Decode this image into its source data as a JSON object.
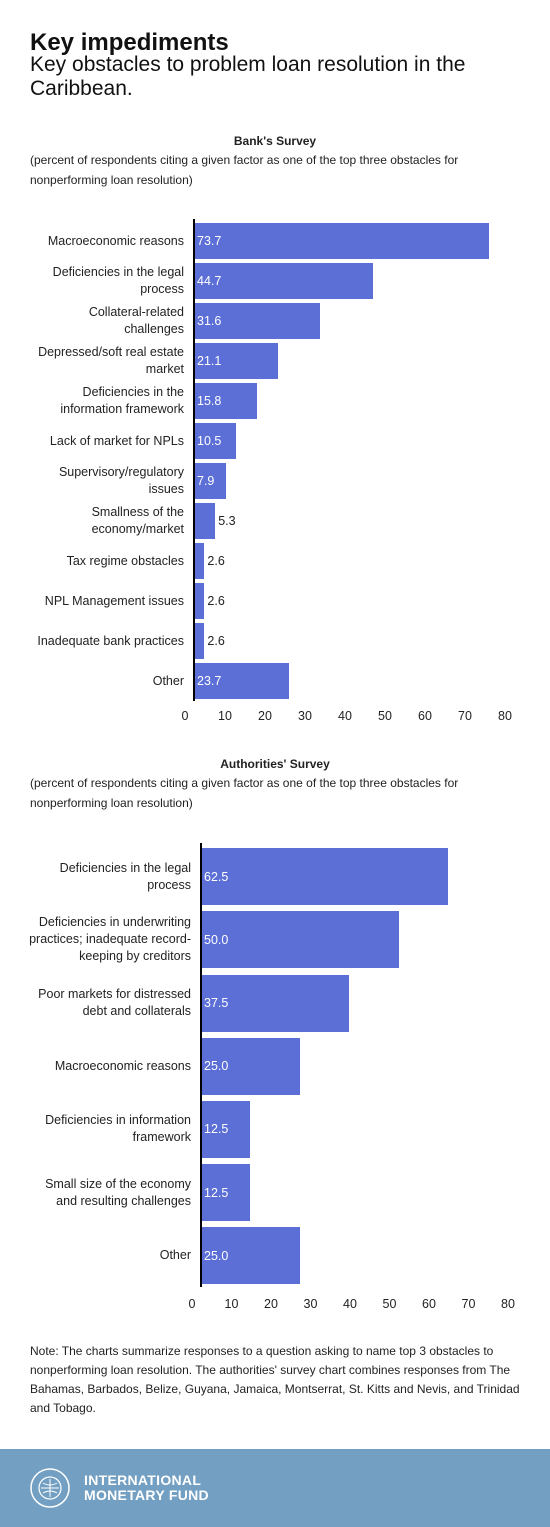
{
  "header": {
    "title": "Key impediments",
    "subtitle": "Key obstacles to problem loan resolution in the Caribbean."
  },
  "chart_data": [
    {
      "type": "bar",
      "orientation": "horizontal",
      "title": "Bank's Survey",
      "subtitle": "(percent of respondents citing a given factor as one of the top three obstacles for nonperforming loan resolution)",
      "categories": [
        "Macroeconomic reasons",
        "Deficiencies in the legal process",
        "Collateral-related challenges",
        "Depressed/soft real estate market",
        "Deficiencies in the information framework",
        "Lack of market for NPLs",
        "Supervisory/regulatory issues",
        "Smallness of the economy/market",
        "Tax regime obstacles",
        "NPL Management issues",
        "Inadequate bank practices",
        "Other"
      ],
      "values": [
        73.7,
        44.7,
        31.6,
        21.1,
        15.8,
        10.5,
        7.9,
        5.3,
        2.6,
        2.6,
        2.6,
        23.7
      ],
      "color": "#5b6fd6",
      "xlim": [
        0,
        80
      ],
      "xticks": [
        0,
        10,
        20,
        30,
        40,
        50,
        60,
        70,
        80
      ]
    },
    {
      "type": "bar",
      "orientation": "horizontal",
      "title": "Authorities' Survey",
      "subtitle": "(percent of respondents citing a given factor as one of the top three obstacles for nonperforming loan resolution)",
      "categories": [
        "Deficiencies in the legal process",
        "Deficiencies in underwriting practices; inadequate record-keeping by creditors",
        "Poor markets for distressed debt and collaterals",
        "Macroeconomic reasons",
        "Deficiencies in information framework",
        "Small size of the economy and resulting challenges",
        "Other"
      ],
      "values": [
        62.5,
        50,
        37.5,
        25,
        12.5,
        12.5,
        25
      ],
      "value_labels": [
        "62.5",
        "50.0",
        "37.5",
        "25.0",
        "12.5",
        "12.5",
        "25.0"
      ],
      "color": "#5b6fd6",
      "xlim": [
        0,
        80
      ],
      "xticks": [
        0,
        10,
        20,
        30,
        40,
        50,
        60,
        70,
        80
      ]
    }
  ],
  "note": "Note: The charts summarize responses to a question asking to name top 3 obstacles to nonperforming loan resolution. The authorities' survey chart combines responses from The Bahamas, Barbados, Belize, Guyana, Jamaica, Montserrat, St. Kitts and Nevis, and Trinidad and Tobago.",
  "footer": {
    "logo_text": "INTERNATIONAL MONETARY FUND"
  }
}
